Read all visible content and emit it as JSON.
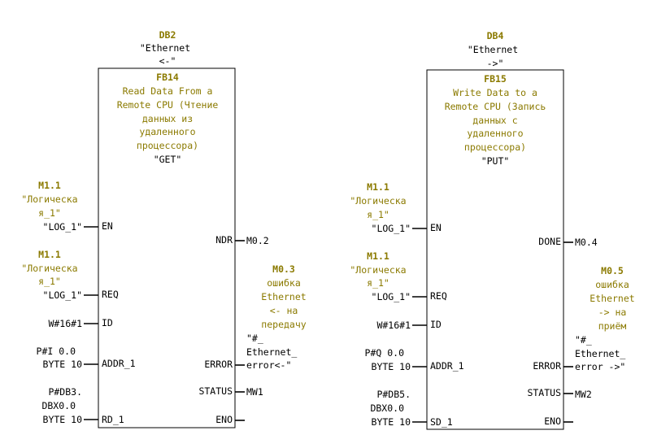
{
  "blocks": [
    {
      "db": "DB2",
      "db_symbol": [
        "\"Ethernet",
        "<-\""
      ],
      "fb": "FB14",
      "comment": [
        "Read Data From a",
        "Remote CPU (Чтение",
        "данных из",
        "удаленного",
        "процессора)"
      ],
      "fb_symbol": "\"GET\"",
      "inputs": [
        {
          "pin": "EN",
          "addr": "M1.1",
          "comment": [
            "\"Логическа",
            "я_1\""
          ],
          "symbol": "\"LOG_1\""
        },
        {
          "pin": "REQ",
          "addr": "M1.1",
          "comment": [
            "\"Логическа",
            "я_1\""
          ],
          "symbol": "\"LOG_1\""
        },
        {
          "pin": "ID",
          "value": [
            "W#16#1"
          ]
        },
        {
          "pin": "ADDR_1",
          "value": [
            "P#I 0.0",
            "BYTE 10"
          ]
        },
        {
          "pin": "RD_1",
          "value": [
            "P#DB3.",
            "DBX0.0",
            "BYTE 10"
          ]
        }
      ],
      "outputs": [
        {
          "pin": "NDR",
          "value": [
            "M0.2"
          ]
        },
        {
          "pin": "ERROR",
          "addr": "M0.3",
          "comment": [
            "ошибка",
            "Ethernet",
            "<- на",
            "передачу"
          ],
          "symbol": [
            "\"#_",
            "Ethernet_",
            "error<-\""
          ]
        },
        {
          "pin": "STATUS",
          "value": [
            "MW1"
          ]
        },
        {
          "pin": "ENO",
          "value": []
        }
      ]
    },
    {
      "db": "DB4",
      "db_symbol": [
        "\"Ethernet",
        "->\""
      ],
      "fb": "FB15",
      "comment": [
        "Write Data to a",
        "Remote CPU (Запись",
        "данных с",
        "удаленного",
        "процессора)"
      ],
      "fb_symbol": "\"PUT\"",
      "inputs": [
        {
          "pin": "EN",
          "addr": "M1.1",
          "comment": [
            "\"Логическа",
            "я_1\""
          ],
          "symbol": "\"LOG_1\""
        },
        {
          "pin": "REQ",
          "addr": "M1.1",
          "comment": [
            "\"Логическа",
            "я_1\""
          ],
          "symbol": "\"LOG_1\""
        },
        {
          "pin": "ID",
          "value": [
            "W#16#1"
          ]
        },
        {
          "pin": "ADDR_1",
          "value": [
            "P#Q 0.0",
            "BYTE 10"
          ]
        },
        {
          "pin": "SD_1",
          "value": [
            "P#DB5.",
            "DBX0.0",
            "BYTE 10"
          ]
        }
      ],
      "outputs": [
        {
          "pin": "DONE",
          "value": [
            "M0.4"
          ]
        },
        {
          "pin": "ERROR",
          "addr": "M0.5",
          "comment": [
            "ошибка",
            "Ethernet",
            "-> на",
            "приём"
          ],
          "symbol": [
            "\"#_",
            "Ethernet_",
            "error ->\""
          ]
        },
        {
          "pin": "STATUS",
          "value": [
            "MW2"
          ]
        },
        {
          "pin": "ENO",
          "value": []
        }
      ]
    }
  ]
}
